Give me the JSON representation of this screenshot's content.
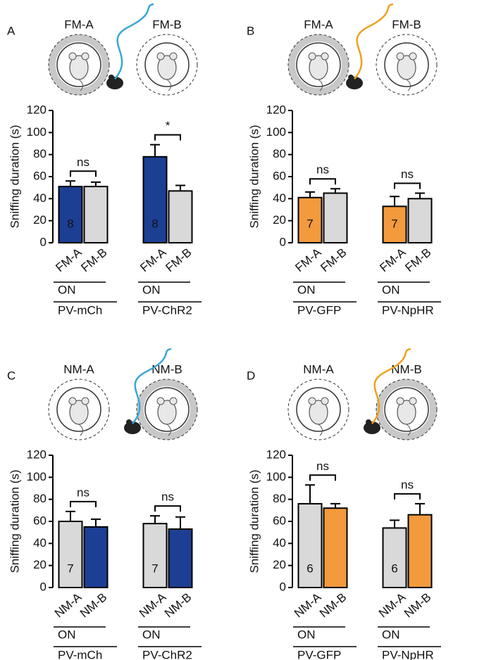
{
  "chart_data": [
    {
      "type": "bar",
      "panel": "A",
      "arenas": [
        {
          "label": "FM-A",
          "ring": "#c8c8c8"
        },
        {
          "label": "FM-B",
          "ring": "none"
        }
      ],
      "fiber_color": "#3aa6d8",
      "ylabel": "Sniffing duration (s)",
      "ylim": [
        0,
        120
      ],
      "yticks": [
        0,
        20,
        40,
        60,
        80,
        100,
        120
      ],
      "categories": [
        "FM-A",
        "FM-B",
        "FM-A",
        "FM-B"
      ],
      "values": [
        51,
        51,
        78,
        47
      ],
      "errors": [
        5,
        4,
        11,
        5
      ],
      "colors": [
        "#1c3f94",
        "#d9d9d9",
        "#1c3f94",
        "#d9d9d9"
      ],
      "groups": [
        {
          "name": "PV-mCh",
          "condition": "ON",
          "n": "8",
          "significance": "ns"
        },
        {
          "name": "PV-ChR2",
          "condition": "ON",
          "n": "8",
          "significance": "*"
        }
      ]
    },
    {
      "type": "bar",
      "panel": "B",
      "arenas": [
        {
          "label": "FM-A",
          "ring": "#c8c8c8"
        },
        {
          "label": "FM-B",
          "ring": "none"
        }
      ],
      "fiber_color": "#f0a020",
      "ylabel": "Sniffing duration (s)",
      "ylim": [
        0,
        120
      ],
      "yticks": [
        0,
        20,
        40,
        60,
        80,
        100,
        120
      ],
      "categories": [
        "FM-A",
        "FM-B",
        "FM-A",
        "FM-B"
      ],
      "values": [
        41,
        45,
        33,
        40
      ],
      "errors": [
        5,
        4,
        9,
        5
      ],
      "colors": [
        "#f39a3d",
        "#d9d9d9",
        "#f39a3d",
        "#d9d9d9"
      ],
      "groups": [
        {
          "name": "PV-GFP",
          "condition": "ON",
          "n": "7",
          "significance": "ns"
        },
        {
          "name": "PV-NpHR",
          "condition": "ON",
          "n": "7",
          "significance": "ns"
        }
      ]
    },
    {
      "type": "bar",
      "panel": "C",
      "arenas": [
        {
          "label": "NM-A",
          "ring": "none"
        },
        {
          "label": "NM-B",
          "ring": "#c8c8c8"
        }
      ],
      "fiber_color": "#3aa6d8",
      "ylabel": "Sniffing duration (s)",
      "ylim": [
        0,
        120
      ],
      "yticks": [
        0,
        20,
        40,
        60,
        80,
        100,
        120
      ],
      "categories": [
        "NM-A",
        "NM-B",
        "NM-A",
        "NM-B"
      ],
      "values": [
        60,
        55,
        58,
        53
      ],
      "errors": [
        9,
        7,
        7,
        11
      ],
      "colors": [
        "#d9d9d9",
        "#1c3f94",
        "#d9d9d9",
        "#1c3f94"
      ],
      "groups": [
        {
          "name": "PV-mCh",
          "condition": "ON",
          "n": "7",
          "significance": "ns"
        },
        {
          "name": "PV-ChR2",
          "condition": "ON",
          "n": "7",
          "significance": "ns"
        }
      ]
    },
    {
      "type": "bar",
      "panel": "D",
      "arenas": [
        {
          "label": "NM-A",
          "ring": "none"
        },
        {
          "label": "NM-B",
          "ring": "#c8c8c8"
        }
      ],
      "fiber_color": "#f0a020",
      "ylabel": "Sniffing duration (s)",
      "ylim": [
        0,
        120
      ],
      "yticks": [
        0,
        20,
        40,
        60,
        80,
        100,
        120
      ],
      "categories": [
        "NM-A",
        "NM-B",
        "NM-A",
        "NM-B"
      ],
      "values": [
        76,
        72,
        54,
        66
      ],
      "errors": [
        17,
        4,
        7,
        10
      ],
      "colors": [
        "#d9d9d9",
        "#f39a3d",
        "#d9d9d9",
        "#f39a3d"
      ],
      "groups": [
        {
          "name": "PV-GFP",
          "condition": "ON",
          "n": "6",
          "significance": "ns"
        },
        {
          "name": "PV-NpHR",
          "condition": "ON",
          "n": "6",
          "significance": "ns"
        }
      ]
    }
  ]
}
